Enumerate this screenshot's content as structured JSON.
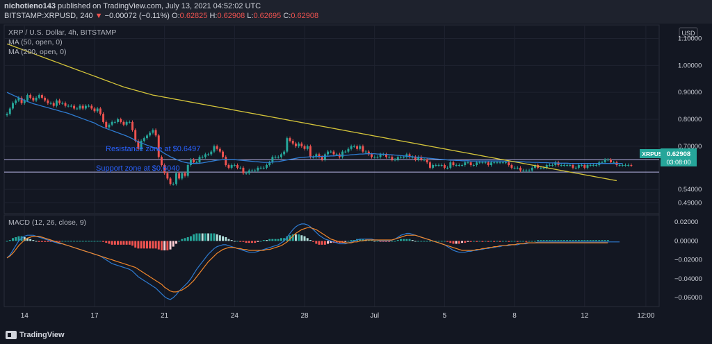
{
  "header": {
    "author": "nichotieno143",
    "published_text": "published on TradingView.com, July 13, 2021 04:52:02 UTC",
    "symbol": "BITSTAMP:XRPUSD, 240",
    "change_arrow": "▼",
    "change": "−0.00072 (−0.11%)",
    "o_label": "O:",
    "o_value": "0.62825",
    "h_label": "H:",
    "h_value": "0.62908",
    "l_label": "L:",
    "l_value": "0.62695",
    "c_label": "C:",
    "c_value": "0.62908"
  },
  "legend": {
    "title": "XRP / U.S. Dollar, 4h, BITSTAMP",
    "ma50": "MA (50, open, 0)",
    "ma200": "MA (200, open, 0)",
    "macd": "MACD (12, 26, close, 9)"
  },
  "price_axis": {
    "currency": "USD",
    "ticks": [
      "1.10000",
      "1.00000",
      "0.90000",
      "0.80000",
      "0.70000",
      "0.62908",
      "0.54000",
      "0.49000"
    ],
    "tick_values": [
      1.1,
      1.0,
      0.9,
      0.8,
      0.7,
      0.62908,
      0.54,
      0.49
    ],
    "symbol_badge": "XRPUSD",
    "last_price": "0.62908",
    "countdown": "03:08:00"
  },
  "macd_axis": {
    "ticks": [
      "0.02000",
      "0.00000",
      "−0.02000",
      "−0.04000",
      "−0.06000"
    ],
    "tick_values": [
      0.02,
      0,
      -0.02,
      -0.04,
      -0.06
    ]
  },
  "time_axis": {
    "labels": [
      "14",
      "17",
      "21",
      "24",
      "28",
      "Jul",
      "5",
      "8",
      "12",
      "12:00"
    ],
    "label_bars": [
      6,
      30,
      54,
      78,
      102,
      126,
      150,
      174,
      198,
      219
    ]
  },
  "annotations": {
    "resistance": "Resistance zone at $0.6497",
    "support": "Support zone at $0.6040"
  },
  "colors": {
    "background": "#131722",
    "up": "#26a69a",
    "down": "#ef5350",
    "ma50": "#2e7bd1",
    "ma200": "#d4c43a",
    "macd": "#2e7bd1",
    "signal": "#f0862b",
    "badge": "#26a69a",
    "annotation": "#2962ff",
    "zone_line": "#b9b5e6"
  },
  "footer": {
    "brand": "TradingView"
  },
  "chart_data": {
    "type": "candlestick",
    "title": "XRP / U.S. Dollar, 4h, BITSTAMP",
    "ylim": [
      0.46,
      1.14
    ],
    "resistance": 0.6497,
    "support": 0.604,
    "closes": [
      0.82,
      0.84,
      0.86,
      0.87,
      0.88,
      0.86,
      0.87,
      0.89,
      0.88,
      0.87,
      0.88,
      0.89,
      0.88,
      0.87,
      0.86,
      0.86,
      0.85,
      0.87,
      0.86,
      0.86,
      0.85,
      0.85,
      0.85,
      0.84,
      0.84,
      0.85,
      0.84,
      0.85,
      0.85,
      0.84,
      0.83,
      0.84,
      0.82,
      0.79,
      0.77,
      0.78,
      0.79,
      0.79,
      0.8,
      0.79,
      0.78,
      0.79,
      0.79,
      0.76,
      0.72,
      0.69,
      0.72,
      0.73,
      0.74,
      0.75,
      0.76,
      0.74,
      0.66,
      0.63,
      0.6,
      0.58,
      0.56,
      0.56,
      0.6,
      0.58,
      0.6,
      0.59,
      0.63,
      0.65,
      0.64,
      0.64,
      0.66,
      0.66,
      0.67,
      0.67,
      0.68,
      0.7,
      0.69,
      0.68,
      0.66,
      0.63,
      0.62,
      0.63,
      0.63,
      0.62,
      0.62,
      0.6,
      0.6,
      0.61,
      0.61,
      0.61,
      0.62,
      0.62,
      0.62,
      0.63,
      0.64,
      0.66,
      0.66,
      0.66,
      0.67,
      0.68,
      0.73,
      0.72,
      0.71,
      0.7,
      0.71,
      0.7,
      0.69,
      0.7,
      0.66,
      0.66,
      0.67,
      0.66,
      0.65,
      0.67,
      0.68,
      0.68,
      0.67,
      0.67,
      0.66,
      0.68,
      0.68,
      0.69,
      0.7,
      0.7,
      0.69,
      0.7,
      0.68,
      0.68,
      0.67,
      0.66,
      0.66,
      0.66,
      0.67,
      0.67,
      0.66,
      0.66,
      0.65,
      0.65,
      0.66,
      0.66,
      0.66,
      0.67,
      0.66,
      0.66,
      0.65,
      0.66,
      0.65,
      0.65,
      0.64,
      0.62,
      0.63,
      0.63,
      0.63,
      0.63,
      0.62,
      0.62,
      0.64,
      0.63,
      0.63,
      0.63,
      0.63,
      0.64,
      0.64,
      0.63,
      0.63,
      0.64,
      0.64,
      0.64,
      0.64,
      0.63,
      0.64,
      0.64,
      0.64,
      0.64,
      0.64,
      0.64,
      0.63,
      0.62,
      0.62,
      0.62,
      0.61,
      0.61,
      0.61,
      0.61,
      0.62,
      0.63,
      0.62,
      0.62,
      0.62,
      0.63,
      0.63,
      0.63,
      0.64,
      0.63,
      0.63,
      0.63,
      0.63,
      0.63,
      0.62,
      0.62,
      0.63,
      0.63,
      0.62,
      0.63,
      0.63,
      0.63,
      0.63,
      0.64,
      0.64,
      0.65,
      0.65,
      0.64,
      0.64,
      0.63,
      0.63,
      0.63,
      0.63,
      0.63,
      0.629
    ],
    "ma50": [
      0.9,
      0.895,
      0.89,
      0.885,
      0.88,
      0.875,
      0.87,
      0.866,
      0.862,
      0.858,
      0.855,
      0.852,
      0.849,
      0.846,
      0.843,
      0.84,
      0.837,
      0.834,
      0.831,
      0.828,
      0.825,
      0.822,
      0.818,
      0.814,
      0.81,
      0.806,
      0.802,
      0.798,
      0.794,
      0.79,
      0.786,
      0.78,
      0.775,
      0.77,
      0.766,
      0.762,
      0.758,
      0.754,
      0.75,
      0.746,
      0.742,
      0.738,
      0.733,
      0.728,
      0.722,
      0.716,
      0.712,
      0.708,
      0.704,
      0.7,
      0.696,
      0.692,
      0.686,
      0.68,
      0.673,
      0.667,
      0.661,
      0.656,
      0.651,
      0.647,
      0.643,
      0.64,
      0.638,
      0.637,
      0.636,
      0.636,
      0.637,
      0.638,
      0.64,
      0.642,
      0.644,
      0.646,
      0.648,
      0.649,
      0.65,
      0.65,
      0.65,
      0.65,
      0.65,
      0.649,
      0.648,
      0.647,
      0.646,
      0.645,
      0.644,
      0.643,
      0.642,
      0.641,
      0.64,
      0.64,
      0.64,
      0.641,
      0.642,
      0.643,
      0.645,
      0.647,
      0.649,
      0.651,
      0.653,
      0.655,
      0.657,
      0.658,
      0.659,
      0.66,
      0.661,
      0.661,
      0.662,
      0.662,
      0.662,
      0.663,
      0.663,
      0.664,
      0.664,
      0.665,
      0.665,
      0.666,
      0.666,
      0.667,
      0.668,
      0.669,
      0.67,
      0.671,
      0.671,
      0.672,
      0.672,
      0.672,
      0.672,
      0.671,
      0.671,
      0.67,
      0.67,
      0.669,
      0.668,
      0.667,
      0.666,
      0.665,
      0.664,
      0.663,
      0.662,
      0.661,
      0.66,
      0.659,
      0.658,
      0.657,
      0.656,
      0.655,
      0.654,
      0.653,
      0.652,
      0.651,
      0.65,
      0.649,
      0.648,
      0.648,
      0.647,
      0.647,
      0.646,
      0.646,
      0.646,
      0.645,
      0.645,
      0.645,
      0.645,
      0.645,
      0.645,
      0.645,
      0.645,
      0.645,
      0.645,
      0.645,
      0.645,
      0.644,
      0.644,
      0.644,
      0.643,
      0.643,
      0.642,
      0.642,
      0.641,
      0.641,
      0.64,
      0.64,
      0.64,
      0.639,
      0.639,
      0.639,
      0.638,
      0.638,
      0.638,
      0.637,
      0.637,
      0.637,
      0.637,
      0.636,
      0.636,
      0.636,
      0.636,
      0.636,
      0.636,
      0.636,
      0.636,
      0.636,
      0.636,
      0.636,
      0.636,
      0.636,
      0.636,
      0.636,
      0.636,
      0.636,
      0.636,
      0.636
    ],
    "ma200": [
      1.08,
      1.076,
      1.072,
      1.068,
      1.064,
      1.06,
      1.056,
      1.052,
      1.048,
      1.044,
      1.04,
      1.036,
      1.032,
      1.028,
      1.024,
      1.02,
      1.016,
      1.012,
      1.008,
      1.004,
      1.0,
      0.996,
      0.992,
      0.988,
      0.984,
      0.98,
      0.976,
      0.972,
      0.968,
      0.964,
      0.96,
      0.956,
      0.952,
      0.948,
      0.944,
      0.94,
      0.936,
      0.932,
      0.928,
      0.924,
      0.92,
      0.917,
      0.914,
      0.911,
      0.908,
      0.905,
      0.902,
      0.899,
      0.896,
      0.893,
      0.89,
      0.888,
      0.886,
      0.884,
      0.882,
      0.88,
      0.878,
      0.876,
      0.874,
      0.872,
      0.87,
      0.868,
      0.866,
      0.864,
      0.862,
      0.86,
      0.858,
      0.856,
      0.854,
      0.852,
      0.85,
      0.848,
      0.846,
      0.844,
      0.842,
      0.84,
      0.838,
      0.836,
      0.834,
      0.832,
      0.83,
      0.828,
      0.826,
      0.824,
      0.822,
      0.82,
      0.818,
      0.816,
      0.814,
      0.812,
      0.81,
      0.808,
      0.806,
      0.804,
      0.802,
      0.8,
      0.798,
      0.796,
      0.794,
      0.792,
      0.79,
      0.788,
      0.786,
      0.784,
      0.782,
      0.78,
      0.778,
      0.776,
      0.774,
      0.772,
      0.77,
      0.768,
      0.766,
      0.764,
      0.762,
      0.76,
      0.758,
      0.756,
      0.754,
      0.752,
      0.75,
      0.748,
      0.746,
      0.744,
      0.742,
      0.74,
      0.738,
      0.736,
      0.734,
      0.732,
      0.73,
      0.728,
      0.726,
      0.724,
      0.722,
      0.72,
      0.718,
      0.716,
      0.714,
      0.712,
      0.71,
      0.708,
      0.706,
      0.704,
      0.702,
      0.7,
      0.698,
      0.696,
      0.694,
      0.692,
      0.69,
      0.688,
      0.686,
      0.684,
      0.682,
      0.68,
      0.678,
      0.676,
      0.674,
      0.672,
      0.67,
      0.668,
      0.666,
      0.664,
      0.662,
      0.66,
      0.658,
      0.656,
      0.654,
      0.652,
      0.65,
      0.648,
      0.646,
      0.644,
      0.642,
      0.64,
      0.638,
      0.636,
      0.634,
      0.632,
      0.63,
      0.628,
      0.626,
      0.624,
      0.622,
      0.62,
      0.618,
      0.616,
      0.614,
      0.612,
      0.61,
      0.608,
      0.606,
      0.604,
      0.602,
      0.6,
      0.598,
      0.596,
      0.594,
      0.592,
      0.59,
      0.588,
      0.586,
      0.584,
      0.582,
      0.58,
      0.578,
      0.576,
      0.574,
      0.572
    ],
    "macd_ylim": [
      -0.068,
      0.026
    ],
    "macd": [
      -0.018,
      -0.015,
      -0.01,
      -0.005,
      0,
      0.003,
      0.005,
      0.006,
      0.006,
      0.006,
      0.005,
      0.004,
      0.003,
      0.002,
      0.001,
      0,
      -0.001,
      -0.002,
      -0.003,
      -0.003,
      -0.004,
      -0.005,
      -0.006,
      -0.007,
      -0.008,
      -0.009,
      -0.01,
      -0.011,
      -0.012,
      -0.013,
      -0.014,
      -0.015,
      -0.016,
      -0.018,
      -0.02,
      -0.022,
      -0.024,
      -0.025,
      -0.026,
      -0.027,
      -0.028,
      -0.029,
      -0.03,
      -0.032,
      -0.035,
      -0.038,
      -0.04,
      -0.042,
      -0.044,
      -0.046,
      -0.048,
      -0.05,
      -0.053,
      -0.056,
      -0.059,
      -0.061,
      -0.062,
      -0.06,
      -0.057,
      -0.053,
      -0.05,
      -0.047,
      -0.044,
      -0.04,
      -0.035,
      -0.03,
      -0.026,
      -0.022,
      -0.018,
      -0.014,
      -0.011,
      -0.008,
      -0.006,
      -0.005,
      -0.004,
      -0.004,
      -0.005,
      -0.006,
      -0.007,
      -0.008,
      -0.009,
      -0.01,
      -0.011,
      -0.012,
      -0.012,
      -0.012,
      -0.011,
      -0.01,
      -0.009,
      -0.008,
      -0.007,
      -0.006,
      -0.005,
      -0.004,
      -0.002,
      0,
      0.004,
      0.008,
      0.012,
      0.015,
      0.017,
      0.018,
      0.018,
      0.017,
      0.015,
      0.012,
      0.009,
      0.006,
      0.004,
      0.002,
      0.001,
      0,
      -0.001,
      -0.002,
      -0.003,
      -0.003,
      -0.003,
      -0.002,
      -0.001,
      0,
      0.001,
      0.002,
      0.002,
      0.002,
      0.002,
      0.002,
      0.001,
      0.001,
      0,
      0,
      0,
      0,
      0.001,
      0.002,
      0.004,
      0.006,
      0.007,
      0.008,
      0.008,
      0.007,
      0.006,
      0.005,
      0.004,
      0.003,
      0.002,
      0.001,
      0,
      -0.001,
      -0.002,
      -0.003,
      -0.004,
      -0.006,
      -0.008,
      -0.01,
      -0.011,
      -0.012,
      -0.012,
      -0.012,
      -0.011,
      -0.011,
      -0.01,
      -0.01,
      -0.009,
      -0.009,
      -0.008,
      -0.008,
      -0.007,
      -0.007,
      -0.006,
      -0.006,
      -0.005,
      -0.005,
      -0.005,
      -0.004,
      -0.004,
      -0.004,
      -0.003,
      -0.003,
      -0.003,
      -0.002,
      -0.002,
      -0.002,
      -0.001,
      -0.001,
      -0.001,
      -0.001,
      -0.001,
      -0.001,
      -0.001,
      -0.001,
      -0.001,
      -0.001,
      -0.001,
      -0.001,
      -0.001,
      -0.001,
      -0.001,
      -0.001,
      -0.001,
      -0.001,
      -0.001,
      -0.001,
      -0.001,
      -0.001,
      -0.001,
      -0.001,
      -0.001,
      -0.001,
      -0.001,
      -0.001,
      -0.001
    ],
    "signal": [
      -0.018,
      -0.016,
      -0.013,
      -0.009,
      -0.005,
      -0.002,
      0.001,
      0.003,
      0.004,
      0.005,
      0.005,
      0.005,
      0.004,
      0.003,
      0.002,
      0.001,
      0,
      -0.001,
      -0.002,
      -0.003,
      -0.004,
      -0.005,
      -0.006,
      -0.007,
      -0.008,
      -0.009,
      -0.01,
      -0.011,
      -0.012,
      -0.013,
      -0.014,
      -0.015,
      -0.016,
      -0.017,
      -0.018,
      -0.019,
      -0.02,
      -0.021,
      -0.022,
      -0.023,
      -0.024,
      -0.025,
      -0.026,
      -0.027,
      -0.028,
      -0.03,
      -0.032,
      -0.034,
      -0.036,
      -0.038,
      -0.04,
      -0.042,
      -0.044,
      -0.046,
      -0.049,
      -0.051,
      -0.053,
      -0.054,
      -0.054,
      -0.053,
      -0.052,
      -0.05,
      -0.048,
      -0.045,
      -0.042,
      -0.038,
      -0.034,
      -0.03,
      -0.026,
      -0.022,
      -0.019,
      -0.016,
      -0.013,
      -0.011,
      -0.009,
      -0.008,
      -0.007,
      -0.007,
      -0.007,
      -0.008,
      -0.008,
      -0.009,
      -0.009,
      -0.01,
      -0.01,
      -0.01,
      -0.01,
      -0.01,
      -0.01,
      -0.009,
      -0.009,
      -0.008,
      -0.007,
      -0.006,
      -0.005,
      -0.003,
      -0.001,
      0.002,
      0.005,
      0.008,
      0.01,
      0.012,
      0.013,
      0.014,
      0.014,
      0.013,
      0.012,
      0.01,
      0.008,
      0.006,
      0.004,
      0.002,
      0.001,
      0,
      -0.001,
      -0.001,
      -0.002,
      -0.002,
      -0.002,
      -0.001,
      -0.001,
      0,
      0,
      0.001,
      0.001,
      0.001,
      0.001,
      0.001,
      0.001,
      0.001,
      0.001,
      0.001,
      0.001,
      0.002,
      0.003,
      0.004,
      0.005,
      0.006,
      0.006,
      0.006,
      0.006,
      0.005,
      0.004,
      0.003,
      0.002,
      0.001,
      0,
      -0.001,
      -0.002,
      -0.003,
      -0.004,
      -0.005,
      -0.006,
      -0.007,
      -0.008,
      -0.009,
      -0.01,
      -0.01,
      -0.01,
      -0.01,
      -0.01,
      -0.009,
      -0.009,
      -0.008,
      -0.008,
      -0.007,
      -0.007,
      -0.006,
      -0.006,
      -0.005,
      -0.005,
      -0.005,
      -0.004,
      -0.004,
      -0.004,
      -0.003,
      -0.003,
      -0.003,
      -0.002,
      -0.002,
      -0.002,
      -0.002,
      -0.002,
      -0.002,
      -0.002,
      -0.002,
      -0.002,
      -0.002,
      -0.002,
      -0.002,
      -0.002,
      -0.002,
      -0.002,
      -0.002,
      -0.002,
      -0.002,
      -0.002,
      -0.002,
      -0.002,
      -0.002,
      -0.002,
      -0.002,
      -0.002,
      -0.002,
      -0.002,
      -0.002,
      -0.002
    ]
  }
}
